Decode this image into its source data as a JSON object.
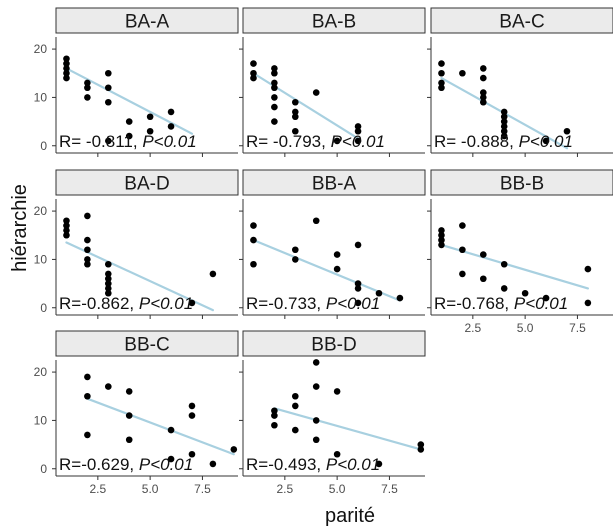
{
  "chart_data": {
    "type": "scatter",
    "facets": "wrap",
    "xlabel": "parité",
    "ylabel": "hiérarchie",
    "xlim": [
      0.5,
      9.2
    ],
    "ylim": [
      -1.5,
      22.5
    ],
    "x_ticks": [
      2.5,
      5.0,
      7.5
    ],
    "x_tick_labels": [
      "2.5",
      "5.0",
      "7.5"
    ],
    "y_ticks": [
      0,
      10,
      20
    ],
    "y_tick_labels": [
      "0",
      "10",
      "20"
    ],
    "grid": false,
    "colors": {
      "point": "#000000",
      "fit_line": "#a8d0e0",
      "strip_fill": "#ebebeb",
      "strip_border": "#333333",
      "axis": "#333333"
    },
    "panels": [
      {
        "label": "BA-A",
        "r_text": "R= -0.811, ",
        "p_text": "P<0.01",
        "fit": [
          [
            1,
            16
          ],
          [
            7,
            2.5
          ]
        ],
        "points": [
          [
            1,
            18
          ],
          [
            1,
            17
          ],
          [
            1,
            16
          ],
          [
            1,
            15
          ],
          [
            1,
            14
          ],
          [
            2,
            13
          ],
          [
            2,
            12
          ],
          [
            2,
            10
          ],
          [
            3,
            15
          ],
          [
            3,
            12
          ],
          [
            3,
            9
          ],
          [
            3,
            1
          ],
          [
            4,
            5
          ],
          [
            4,
            2
          ],
          [
            5,
            6
          ],
          [
            5,
            3
          ],
          [
            6,
            7
          ],
          [
            6,
            4
          ]
        ]
      },
      {
        "label": "BA-B",
        "r_text": "R= -0.793, ",
        "p_text": "P<0.01",
        "fit": [
          [
            1,
            15
          ],
          [
            6,
            1.5
          ]
        ],
        "points": [
          [
            1,
            17
          ],
          [
            1,
            15
          ],
          [
            1,
            14
          ],
          [
            2,
            16
          ],
          [
            2,
            15
          ],
          [
            2,
            13
          ],
          [
            2,
            12
          ],
          [
            2,
            10
          ],
          [
            2,
            8
          ],
          [
            2,
            5
          ],
          [
            3,
            9
          ],
          [
            3,
            7
          ],
          [
            3,
            6
          ],
          [
            3,
            3
          ],
          [
            4,
            11
          ],
          [
            5,
            1
          ],
          [
            6,
            4
          ],
          [
            6,
            3
          ],
          [
            6,
            1
          ]
        ]
      },
      {
        "label": "BA-C",
        "r_text": "R= -0.888, ",
        "p_text": "P<0.01",
        "fit": [
          [
            1,
            14
          ],
          [
            7,
            -0.5
          ]
        ],
        "points": [
          [
            1,
            17
          ],
          [
            1,
            15
          ],
          [
            1,
            13
          ],
          [
            1,
            12
          ],
          [
            2,
            15
          ],
          [
            3,
            16
          ],
          [
            3,
            14
          ],
          [
            3,
            11
          ],
          [
            3,
            10
          ],
          [
            3,
            9
          ],
          [
            4,
            7
          ],
          [
            4,
            6
          ],
          [
            4,
            5
          ],
          [
            4,
            4
          ],
          [
            4,
            3
          ],
          [
            4,
            2
          ],
          [
            6,
            1
          ],
          [
            7,
            3
          ]
        ]
      },
      {
        "label": "BA-D",
        "r_text": "R=-0.862, ",
        "p_text": "P<0.01",
        "fit": [
          [
            1,
            13.5
          ],
          [
            8,
            -0.5
          ]
        ],
        "points": [
          [
            1,
            18
          ],
          [
            1,
            17
          ],
          [
            1,
            16
          ],
          [
            1,
            15
          ],
          [
            2,
            19
          ],
          [
            2,
            14
          ],
          [
            2,
            12
          ],
          [
            2,
            10
          ],
          [
            2,
            9
          ],
          [
            3,
            9
          ],
          [
            3,
            7
          ],
          [
            3,
            6
          ],
          [
            3,
            5
          ],
          [
            3,
            4
          ],
          [
            3,
            3
          ],
          [
            7,
            1
          ],
          [
            8,
            7
          ]
        ]
      },
      {
        "label": "BB-A",
        "r_text": "R=-0.733, ",
        "p_text": "P<0.01",
        "fit": [
          [
            1,
            14
          ],
          [
            8,
            1.5
          ]
        ],
        "points": [
          [
            1,
            17
          ],
          [
            1,
            14
          ],
          [
            1,
            9
          ],
          [
            3,
            12
          ],
          [
            3,
            10
          ],
          [
            4,
            18
          ],
          [
            5,
            11
          ],
          [
            5,
            8
          ],
          [
            6,
            13
          ],
          [
            6,
            5
          ],
          [
            6,
            4
          ],
          [
            6,
            1
          ],
          [
            7,
            3
          ],
          [
            8,
            2
          ]
        ]
      },
      {
        "label": "BB-B",
        "r_text": "R=-0.768, ",
        "p_text": "P<0.01",
        "fit": [
          [
            1,
            13
          ],
          [
            8,
            4
          ]
        ],
        "points": [
          [
            1,
            16
          ],
          [
            1,
            15
          ],
          [
            1,
            14
          ],
          [
            1,
            13
          ],
          [
            2,
            17
          ],
          [
            2,
            12
          ],
          [
            2,
            7
          ],
          [
            3,
            11
          ],
          [
            3,
            6
          ],
          [
            4,
            9
          ],
          [
            4,
            4
          ],
          [
            5,
            3
          ],
          [
            6,
            2
          ],
          [
            8,
            8
          ],
          [
            8,
            1
          ]
        ]
      },
      {
        "label": "BB-C",
        "r_text": "R=-0.629, ",
        "p_text": "P<0.01",
        "fit": [
          [
            2,
            14.5
          ],
          [
            9,
            3
          ]
        ],
        "points": [
          [
            2,
            19
          ],
          [
            2,
            15
          ],
          [
            2,
            7
          ],
          [
            3,
            17
          ],
          [
            4,
            16
          ],
          [
            4,
            11
          ],
          [
            4,
            6
          ],
          [
            6,
            8
          ],
          [
            6,
            2
          ],
          [
            7,
            13
          ],
          [
            7,
            11
          ],
          [
            7,
            3
          ],
          [
            8,
            1
          ],
          [
            9,
            4
          ]
        ]
      },
      {
        "label": "BB-D",
        "r_text": "R=-0.493, ",
        "p_text": "P<0.01",
        "fit": [
          [
            2,
            12.5
          ],
          [
            9,
            4
          ]
        ],
        "points": [
          [
            2,
            12
          ],
          [
            2,
            11
          ],
          [
            2,
            9
          ],
          [
            3,
            15
          ],
          [
            3,
            13
          ],
          [
            3,
            8
          ],
          [
            4,
            22
          ],
          [
            4,
            17
          ],
          [
            4,
            10
          ],
          [
            4,
            6
          ],
          [
            5,
            16
          ],
          [
            5,
            3
          ],
          [
            7,
            1
          ],
          [
            9,
            5
          ],
          [
            9,
            4
          ]
        ]
      }
    ]
  }
}
